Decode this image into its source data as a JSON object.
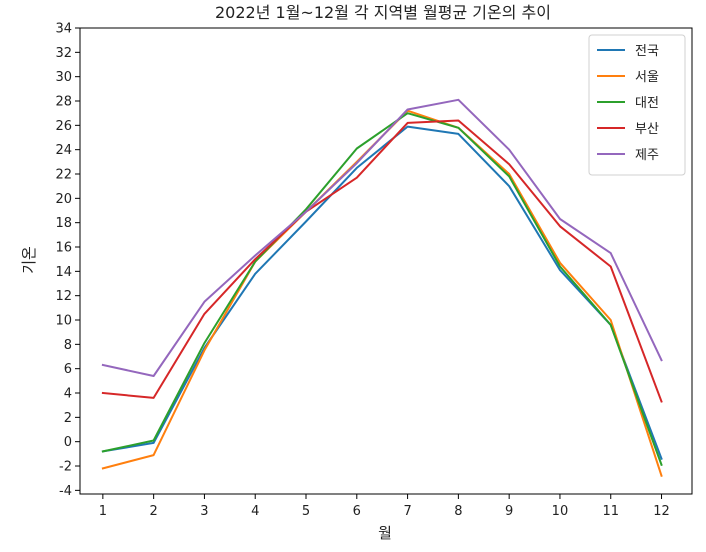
{
  "chart_data": {
    "type": "line",
    "title": "2022년 1월~12월 각 지역별 월평균 기온의 추이",
    "xlabel": "월",
    "ylabel": "기온",
    "x": [
      1,
      2,
      3,
      4,
      5,
      6,
      7,
      8,
      9,
      10,
      11,
      12
    ],
    "xlim": [
      0.55,
      12.6
    ],
    "ylim": [
      -4.3,
      34
    ],
    "yticks": [
      -4,
      -2,
      0,
      2,
      4,
      6,
      8,
      10,
      12,
      14,
      16,
      18,
      20,
      22,
      24,
      26,
      28,
      30,
      32,
      34
    ],
    "grid": false,
    "legend_position": "top-right",
    "series": [
      {
        "name": "전국",
        "color": "#1f77b4",
        "values": [
          -0.8,
          -0.1,
          7.7,
          13.8,
          18.1,
          22.5,
          25.9,
          25.3,
          21.0,
          14.1,
          9.6,
          -1.4
        ]
      },
      {
        "name": "서울",
        "color": "#ff7f0e",
        "values": [
          -2.2,
          -1.1,
          7.5,
          14.8,
          18.9,
          23.0,
          27.2,
          25.8,
          22.0,
          14.7,
          10.0,
          -2.8
        ]
      },
      {
        "name": "대전",
        "color": "#2ca02c",
        "values": [
          -0.8,
          0.1,
          8.1,
          14.8,
          19.1,
          24.1,
          27.0,
          25.8,
          21.8,
          14.4,
          9.6,
          -1.9
        ]
      },
      {
        "name": "부산",
        "color": "#d62728",
        "values": [
          4.0,
          3.6,
          10.5,
          15.0,
          18.9,
          21.7,
          26.2,
          26.4,
          22.8,
          17.7,
          14.4,
          3.3
        ]
      },
      {
        "name": "제주",
        "color": "#9467bd",
        "values": [
          6.3,
          5.4,
          11.5,
          15.3,
          18.9,
          22.9,
          27.3,
          28.1,
          24.0,
          18.3,
          15.5,
          6.7
        ]
      }
    ]
  }
}
